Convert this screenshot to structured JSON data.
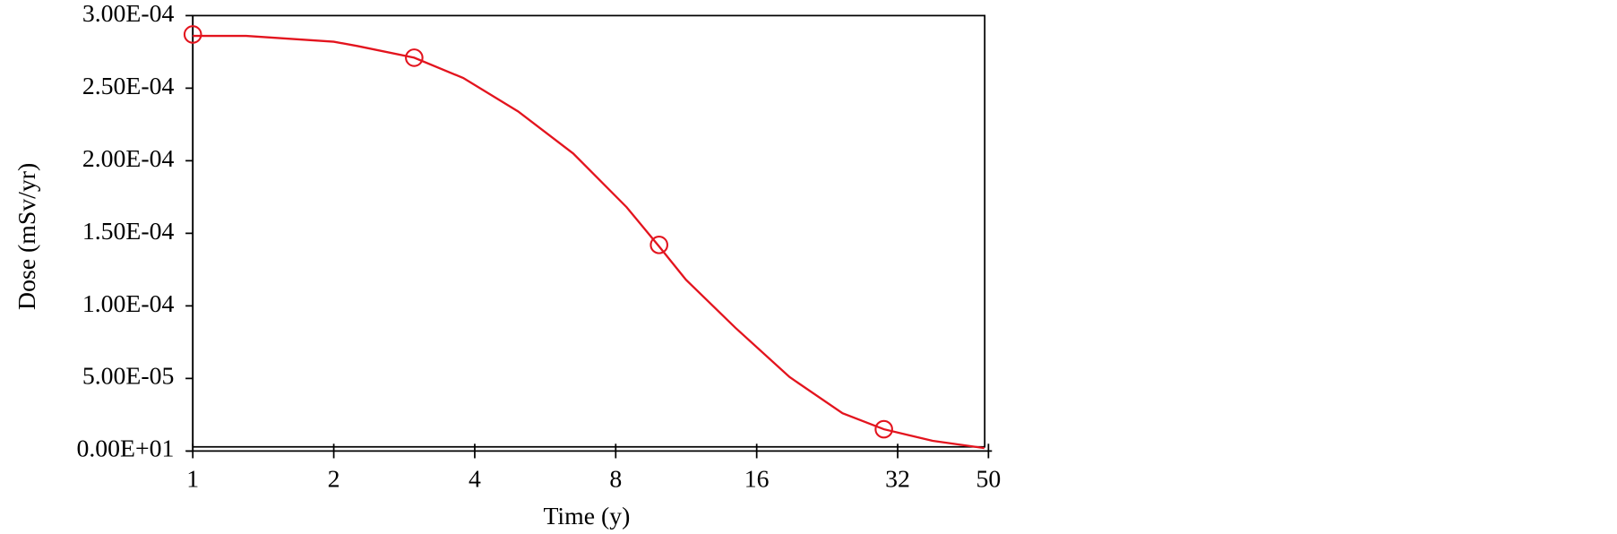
{
  "chart_data": {
    "type": "line",
    "x_label": "Time (y)",
    "y_label": "Dose (mSv/yr)",
    "log_x": true,
    "color": "#e3141e",
    "x": [
      1,
      1.3,
      2,
      2.25,
      2.97,
      3.78,
      4.95,
      6.49,
      8.44,
      9.9,
      11.3,
      14.4,
      18.8,
      24.4,
      29.9,
      38,
      49
    ],
    "values": [
      0.000286,
      0.000286,
      0.000282,
      0.000279,
      0.000271,
      0.000257,
      0.000234,
      0.000205,
      0.000168,
      0.000141,
      0.000118,
      8.5e-05,
      5.1e-05,
      2.6e-05,
      1.5e-05,
      7e-06,
      2e-06
    ],
    "markers": {
      "x": [
        1,
        2.97,
        9.9,
        29.9
      ],
      "values": [
        0.000287,
        0.000271,
        0.000142,
        1.5e-05
      ]
    },
    "xlim": [
      1,
      50
    ],
    "xticks": [
      1,
      2,
      4,
      8,
      16,
      32,
      50
    ],
    "ylim": [
      0,
      0.0003
    ],
    "yticks": [
      {
        "value": 0,
        "label": "0.00E+01"
      },
      {
        "value": 5e-05,
        "label": "5.00E-05"
      },
      {
        "value": 0.0001,
        "label": "1.00E-04"
      },
      {
        "value": 0.00015,
        "label": "1.50E-04"
      },
      {
        "value": 0.0002,
        "label": "2.00E-04"
      },
      {
        "value": 0.00025,
        "label": "2.50E-04"
      },
      {
        "value": 0.0003,
        "label": "3.00E-04"
      }
    ]
  }
}
